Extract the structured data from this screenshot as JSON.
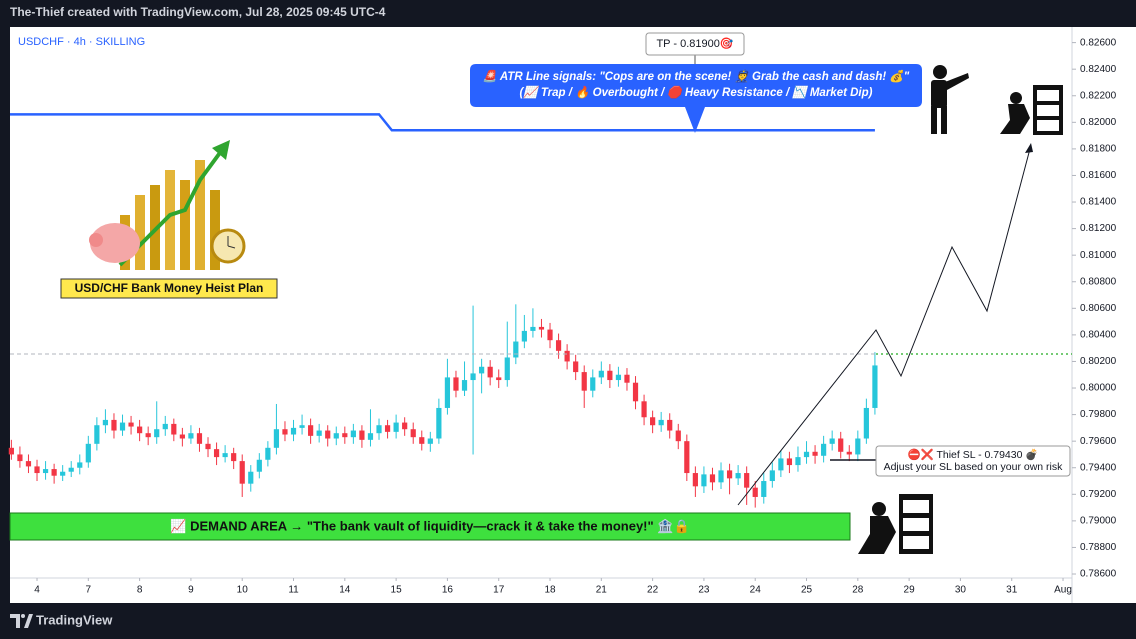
{
  "header": {
    "title": "The-Thief created with TradingView.com, Jul 28, 2025 09:45 UTC-4"
  },
  "footer": {
    "brand": "TradingView"
  },
  "chart_data": {
    "type": "candlestick",
    "symbol": "USDCHF · 4h · SKILLING",
    "up_color": "#26c6da",
    "down_color": "#f23645",
    "candles": [
      [
        0.7955,
        0.7961,
        0.7946,
        0.795
      ],
      [
        0.795,
        0.7956,
        0.794,
        0.7945
      ],
      [
        0.7945,
        0.795,
        0.7936,
        0.7941
      ],
      [
        0.7941,
        0.7946,
        0.793,
        0.7936
      ],
      [
        0.7936,
        0.7945,
        0.7931,
        0.7939
      ],
      [
        0.7939,
        0.7943,
        0.7928,
        0.7934
      ],
      [
        0.7934,
        0.7942,
        0.793,
        0.7937
      ],
      [
        0.7937,
        0.7945,
        0.7933,
        0.794
      ],
      [
        0.794,
        0.795,
        0.7935,
        0.7944
      ],
      [
        0.7944,
        0.7964,
        0.794,
        0.7958
      ],
      [
        0.7958,
        0.7978,
        0.7953,
        0.7972
      ],
      [
        0.7972,
        0.7984,
        0.7966,
        0.7976
      ],
      [
        0.7976,
        0.7981,
        0.7962,
        0.7968
      ],
      [
        0.7968,
        0.798,
        0.7964,
        0.7974
      ],
      [
        0.7974,
        0.7979,
        0.7965,
        0.7971
      ],
      [
        0.7971,
        0.7976,
        0.796,
        0.7966
      ],
      [
        0.7966,
        0.7971,
        0.7957,
        0.7963
      ],
      [
        0.7963,
        0.799,
        0.7958,
        0.7969
      ],
      [
        0.7969,
        0.7979,
        0.7964,
        0.7973
      ],
      [
        0.7973,
        0.7977,
        0.796,
        0.7965
      ],
      [
        0.7965,
        0.797,
        0.7956,
        0.7962
      ],
      [
        0.7962,
        0.7972,
        0.7958,
        0.7966
      ],
      [
        0.7966,
        0.797,
        0.7952,
        0.7958
      ],
      [
        0.7958,
        0.7963,
        0.7948,
        0.7954
      ],
      [
        0.7954,
        0.7959,
        0.7942,
        0.7948
      ],
      [
        0.7948,
        0.7957,
        0.7944,
        0.7951
      ],
      [
        0.7951,
        0.7955,
        0.7939,
        0.7945
      ],
      [
        0.7945,
        0.795,
        0.7918,
        0.7928
      ],
      [
        0.7928,
        0.7942,
        0.7922,
        0.7937
      ],
      [
        0.7937,
        0.7951,
        0.7932,
        0.7946
      ],
      [
        0.7946,
        0.796,
        0.7941,
        0.7955
      ],
      [
        0.7955,
        0.7988,
        0.795,
        0.7969
      ],
      [
        0.7969,
        0.7975,
        0.796,
        0.7965
      ],
      [
        0.7965,
        0.7976,
        0.796,
        0.797
      ],
      [
        0.797,
        0.798,
        0.7965,
        0.7972
      ],
      [
        0.7972,
        0.7977,
        0.7958,
        0.7964
      ],
      [
        0.7964,
        0.7973,
        0.7959,
        0.7968
      ],
      [
        0.7968,
        0.7972,
        0.7956,
        0.7962
      ],
      [
        0.7962,
        0.7971,
        0.7957,
        0.7966
      ],
      [
        0.7966,
        0.7971,
        0.7958,
        0.7963
      ],
      [
        0.7963,
        0.7973,
        0.7958,
        0.7968
      ],
      [
        0.7968,
        0.7972,
        0.7955,
        0.7961
      ],
      [
        0.7961,
        0.7984,
        0.7956,
        0.7966
      ],
      [
        0.7966,
        0.7977,
        0.7961,
        0.7972
      ],
      [
        0.7972,
        0.7976,
        0.7962,
        0.7967
      ],
      [
        0.7967,
        0.798,
        0.7962,
        0.7974
      ],
      [
        0.7974,
        0.7978,
        0.7964,
        0.7969
      ],
      [
        0.7969,
        0.7974,
        0.7958,
        0.7963
      ],
      [
        0.7963,
        0.7968,
        0.7953,
        0.7958
      ],
      [
        0.7958,
        0.7967,
        0.7952,
        0.7962
      ],
      [
        0.7962,
        0.7992,
        0.7958,
        0.7985
      ],
      [
        0.7985,
        0.8022,
        0.798,
        0.8008
      ],
      [
        0.8008,
        0.8013,
        0.7993,
        0.7998
      ],
      [
        0.7998,
        0.802,
        0.7994,
        0.8006
      ],
      [
        0.8006,
        0.8062,
        0.795,
        0.8011
      ],
      [
        0.8011,
        0.8022,
        0.7996,
        0.8016
      ],
      [
        0.8016,
        0.8021,
        0.8002,
        0.8008
      ],
      [
        0.8008,
        0.8014,
        0.8,
        0.8006
      ],
      [
        0.8006,
        0.805,
        0.8001,
        0.8023
      ],
      [
        0.8023,
        0.8063,
        0.8018,
        0.8035
      ],
      [
        0.8035,
        0.8055,
        0.803,
        0.8043
      ],
      [
        0.8043,
        0.806,
        0.8038,
        0.8046
      ],
      [
        0.8046,
        0.8052,
        0.8038,
        0.8044
      ],
      [
        0.8044,
        0.8049,
        0.803,
        0.8036
      ],
      [
        0.8036,
        0.8041,
        0.8022,
        0.8028
      ],
      [
        0.8028,
        0.8033,
        0.8014,
        0.802
      ],
      [
        0.802,
        0.8025,
        0.8006,
        0.8012
      ],
      [
        0.8012,
        0.8017,
        0.7985,
        0.7998
      ],
      [
        0.7998,
        0.8014,
        0.7993,
        0.8008
      ],
      [
        0.8008,
        0.802,
        0.8003,
        0.8013
      ],
      [
        0.8013,
        0.8018,
        0.8,
        0.8006
      ],
      [
        0.8006,
        0.8016,
        0.8001,
        0.801
      ],
      [
        0.801,
        0.8015,
        0.7998,
        0.8004
      ],
      [
        0.8004,
        0.8009,
        0.7984,
        0.799
      ],
      [
        0.799,
        0.7995,
        0.7972,
        0.7978
      ],
      [
        0.7978,
        0.7983,
        0.7966,
        0.7972
      ],
      [
        0.7972,
        0.7982,
        0.7967,
        0.7976
      ],
      [
        0.7976,
        0.7981,
        0.7962,
        0.7968
      ],
      [
        0.7968,
        0.7973,
        0.7954,
        0.796
      ],
      [
        0.796,
        0.7965,
        0.793,
        0.7936
      ],
      [
        0.7936,
        0.7941,
        0.7918,
        0.7926
      ],
      [
        0.7926,
        0.7941,
        0.7921,
        0.7935
      ],
      [
        0.7935,
        0.794,
        0.7923,
        0.7929
      ],
      [
        0.7929,
        0.7944,
        0.7924,
        0.7938
      ],
      [
        0.7938,
        0.7943,
        0.792,
        0.7932
      ],
      [
        0.7932,
        0.7942,
        0.7927,
        0.7936
      ],
      [
        0.7936,
        0.7941,
        0.7912,
        0.7925
      ],
      [
        0.7925,
        0.793,
        0.791,
        0.7918
      ],
      [
        0.7918,
        0.7936,
        0.7913,
        0.793
      ],
      [
        0.793,
        0.7944,
        0.7925,
        0.7938
      ],
      [
        0.7938,
        0.7953,
        0.7933,
        0.7947
      ],
      [
        0.7947,
        0.7952,
        0.7936,
        0.7942
      ],
      [
        0.7942,
        0.7956,
        0.7937,
        0.7948
      ],
      [
        0.7948,
        0.796,
        0.7943,
        0.7952
      ],
      [
        0.7952,
        0.7957,
        0.7943,
        0.7949
      ],
      [
        0.7949,
        0.7964,
        0.7944,
        0.7958
      ],
      [
        0.7958,
        0.7968,
        0.7953,
        0.7962
      ],
      [
        0.7962,
        0.7967,
        0.7947,
        0.7952
      ],
      [
        0.7952,
        0.7957,
        0.7945,
        0.795
      ],
      [
        0.795,
        0.7968,
        0.7945,
        0.7962
      ],
      [
        0.7962,
        0.7992,
        0.7958,
        0.7985
      ],
      [
        0.7985,
        0.8027,
        0.798,
        0.8017
      ]
    ],
    "atr_line": {
      "color": "#2962ff",
      "x": [
        -0.16,
        43,
        44.5,
        101
      ],
      "values": [
        0.8206,
        0.8206,
        0.8194,
        0.8194
      ]
    },
    "xlim": [
      -0.16,
      124.05
    ],
    "xticks": [
      {
        "value": 3,
        "label": "4"
      },
      {
        "value": 9,
        "label": "7"
      },
      {
        "value": 15,
        "label": "8"
      },
      {
        "value": 21,
        "label": "9"
      },
      {
        "value": 27,
        "label": "10"
      },
      {
        "value": 33,
        "label": "11"
      },
      {
        "value": 39,
        "label": "14"
      },
      {
        "value": 45,
        "label": "15"
      },
      {
        "value": 51,
        "label": "16"
      },
      {
        "value": 57,
        "label": "17"
      },
      {
        "value": 63,
        "label": "18"
      },
      {
        "value": 69,
        "label": "21"
      },
      {
        "value": 75,
        "label": "22"
      },
      {
        "value": 81,
        "label": "23"
      },
      {
        "value": 87,
        "label": "24"
      },
      {
        "value": 93,
        "label": "25"
      },
      {
        "value": 99,
        "label": "28"
      },
      {
        "value": 105,
        "label": "29"
      },
      {
        "value": 111,
        "label": "30"
      },
      {
        "value": 117,
        "label": "31"
      },
      {
        "value": 123,
        "label": "Aug"
      }
    ],
    "ylim": [
      0.7857,
      0.8271
    ],
    "yticks": [
      {
        "value": 0.786,
        "label": "0.78600"
      },
      {
        "value": 0.788,
        "label": "0.78800"
      },
      {
        "value": 0.79,
        "label": "0.79000"
      },
      {
        "value": 0.792,
        "label": "0.79200"
      },
      {
        "value": 0.794,
        "label": "0.79400"
      },
      {
        "value": 0.796,
        "label": "0.79600"
      },
      {
        "value": 0.798,
        "label": "0.79800"
      },
      {
        "value": 0.8,
        "label": "0.80000"
      },
      {
        "value": 0.802,
        "label": "0.80200"
      },
      {
        "value": 0.804,
        "label": "0.80400"
      },
      {
        "value": 0.806,
        "label": "0.80600"
      },
      {
        "value": 0.808,
        "label": "0.80800"
      },
      {
        "value": 0.81,
        "label": "0.81000"
      },
      {
        "value": 0.812,
        "label": "0.81200"
      },
      {
        "value": 0.814,
        "label": "0.81400"
      },
      {
        "value": 0.816,
        "label": "0.81600"
      },
      {
        "value": 0.818,
        "label": "0.81800"
      },
      {
        "value": 0.82,
        "label": "0.82000"
      },
      {
        "value": 0.822,
        "label": "0.82200"
      },
      {
        "value": 0.824,
        "label": "0.82400"
      },
      {
        "value": 0.826,
        "label": "0.82600"
      }
    ],
    "annotations": {
      "tp": "TP - 0.81900🎯",
      "callout_line1": "🚨 ATR Line signals: \"Cops are on the scene! 👮 Grab the cash and dash! 💰\"",
      "callout_line2": "(📈 Trap / 🔥 Overbought / 🛑 Heavy Resistance / 📉 Market Dip)",
      "plan": "USD/CHF Bank Money Heist Plan",
      "demand": "📈 DEMAND AREA → \"The bank vault of liquidity—crack it & take the money!\" 🏦🔒",
      "sl": "⛔❌ Thief SL - 0.79430 💣",
      "sl_note": "Adjust your SL based on your own risk"
    }
  }
}
